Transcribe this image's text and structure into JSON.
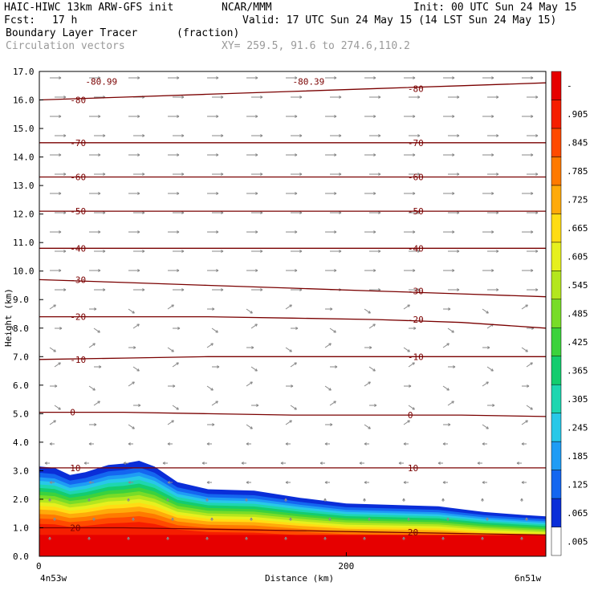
{
  "header": {
    "title_left": "HAIC-HIWC 13km ARW-GFS init",
    "center_org": "NCAR/MMM",
    "init": "Init: 00 UTC Sun 24 May 15",
    "fcst_label": "Fcst:",
    "fcst_value": "17 h",
    "valid": "Valid: 17 UTC Sun 24 May 15 (14 LST Sun 24 May 15)",
    "field_name": "Boundary Layer Tracer",
    "field_units": "(fraction)",
    "vector_name": "Circulation vectors",
    "cross_section": "XY= 259.5, 91.6 to 274.6,110.2"
  },
  "chart_data": {
    "type": "heatmap",
    "xlabel": "Distance (km)",
    "ylabel": "Height (km)",
    "x_start_label": "4n53w",
    "x_end_label": "6n51w",
    "xlim": [
      0,
      330
    ],
    "ylim": [
      0,
      17
    ],
    "x_ticks": [
      0,
      200
    ],
    "y_ticks": [
      "0.0",
      "1.0",
      "2.0",
      "3.0",
      "4.0",
      "5.0",
      "6.0",
      "7.0",
      "8.0",
      "9.0",
      "10.0",
      "11.0",
      "12.0",
      "13.0",
      "14.0",
      "15.0",
      "16.0",
      "17.0"
    ],
    "colorbar_labels": [
      ".005",
      ".065",
      ".125",
      ".185",
      ".245",
      ".305",
      ".365",
      ".425",
      ".485",
      ".545",
      ".605",
      ".665",
      ".725",
      ".785",
      ".845",
      ".905",
      "-"
    ],
    "colorbar_colors": [
      "#ffffff",
      "#0a2ed8",
      "#1466f0",
      "#1f9cf5",
      "#28c8e8",
      "#1ed6b0",
      "#14cc6e",
      "#3cd23c",
      "#78dc28",
      "#b4e61e",
      "#e6f01e",
      "#ffdc14",
      "#ffaa0a",
      "#ff7a00",
      "#ff4a00",
      "#f51e00",
      "#e60000"
    ],
    "tracer_top_km": [
      [
        0,
        3.15
      ],
      [
        10,
        3.1
      ],
      [
        20,
        2.85
      ],
      [
        30,
        2.95
      ],
      [
        45,
        3.2
      ],
      [
        55,
        3.25
      ],
      [
        65,
        3.35
      ],
      [
        75,
        3.15
      ],
      [
        90,
        2.6
      ],
      [
        110,
        2.35
      ],
      [
        140,
        2.3
      ],
      [
        170,
        2.05
      ],
      [
        200,
        1.85
      ],
      [
        230,
        1.8
      ],
      [
        260,
        1.75
      ],
      [
        290,
        1.55
      ],
      [
        315,
        1.45
      ],
      [
        330,
        1.4
      ]
    ],
    "theta_contours": {
      "labels": [
        "-80.99",
        "-80.39",
        "-80",
        "-70",
        "-60",
        "-50",
        "-40",
        "-30",
        "-20",
        "-10",
        "0",
        "10",
        "20"
      ],
      "isolines": [
        {
          "label": "-80",
          "y": [
            16.0,
            16.1,
            16.2,
            16.3,
            16.4,
            16.5,
            16.6
          ]
        },
        {
          "label": "-70",
          "y": [
            14.5,
            14.5,
            14.5,
            14.5,
            14.5,
            14.5,
            14.5
          ]
        },
        {
          "label": "-60",
          "y": [
            13.3,
            13.3,
            13.3,
            13.3,
            13.3,
            13.3,
            13.3
          ]
        },
        {
          "label": "-50",
          "y": [
            12.1,
            12.1,
            12.1,
            12.1,
            12.1,
            12.1,
            12.1
          ]
        },
        {
          "label": "-40",
          "y": [
            10.8,
            10.8,
            10.8,
            10.8,
            10.8,
            10.8,
            10.8
          ]
        },
        {
          "label": "-30",
          "y": [
            9.7,
            9.6,
            9.5,
            9.4,
            9.3,
            9.2,
            9.1
          ]
        },
        {
          "label": "-20",
          "y": [
            8.4,
            8.4,
            8.4,
            8.35,
            8.3,
            8.2,
            8.0
          ]
        },
        {
          "label": "-10",
          "y": [
            6.9,
            6.95,
            7.0,
            7.0,
            7.0,
            7.0,
            7.0
          ]
        },
        {
          "label": "0",
          "y": [
            5.05,
            5.05,
            5.0,
            4.95,
            4.95,
            4.95,
            4.9
          ]
        },
        {
          "label": "10",
          "y": [
            3.1,
            3.1,
            3.1,
            3.1,
            3.1,
            3.1,
            3.1
          ]
        },
        {
          "label": "20",
          "y": [
            1.0,
            1.0,
            0.95,
            0.9,
            0.85,
            0.8,
            0.75
          ]
        }
      ]
    }
  }
}
